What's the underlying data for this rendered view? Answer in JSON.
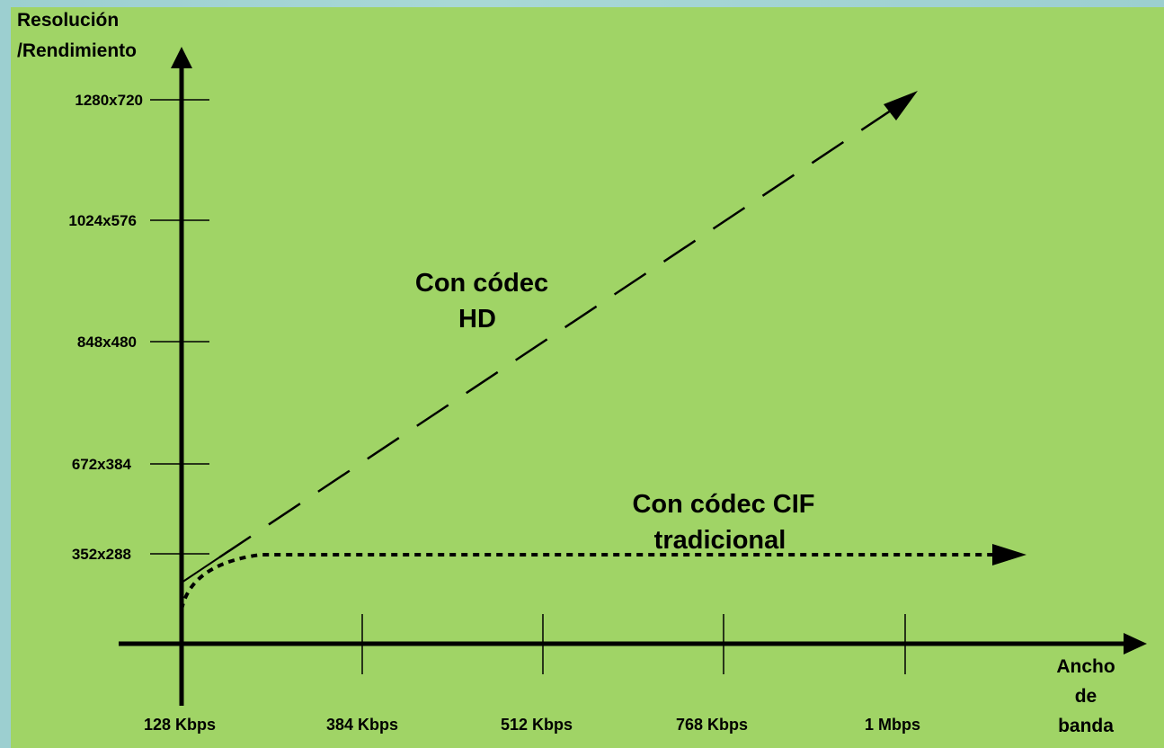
{
  "y_axis": {
    "title_line1": "Resolución",
    "title_line2": "/Rendimiento",
    "ticks": [
      "352x288",
      "672x384",
      "848x480",
      "1024x576",
      "1280x720"
    ]
  },
  "x_axis": {
    "title_line1": "Ancho",
    "title_line2": "de",
    "title_line3": "banda",
    "ticks": [
      "128 Kbps",
      "384 Kbps",
      "512 Kbps",
      "768 Kbps",
      "1 Mbps"
    ]
  },
  "annotations": {
    "hd_line1": "Con códec",
    "hd_line2": "HD",
    "cif_line1": "Con códec CIF",
    "cif_line2": "tradicional"
  },
  "colors": {
    "panel": "#a0d466",
    "frame": "#9ccfd0",
    "ink": "#000000"
  }
}
